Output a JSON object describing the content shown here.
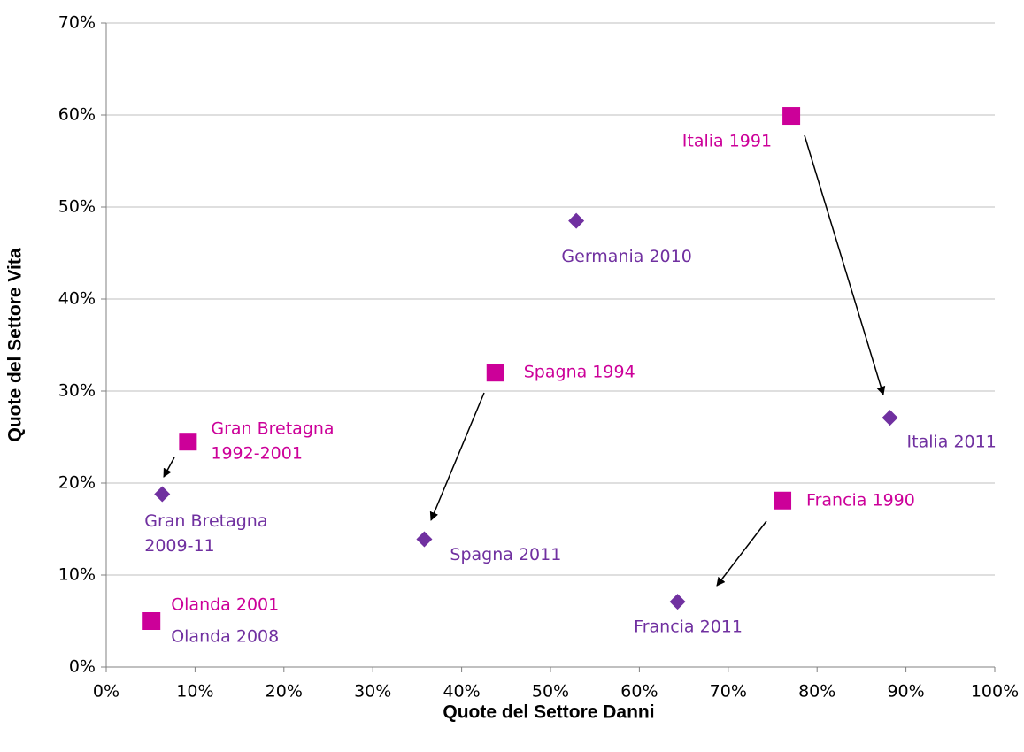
{
  "chart_data": {
    "type": "scatter",
    "xlabel": "Quote del Settore Danni",
    "ylabel": "Quote del Settore Vita",
    "xlim": [
      0,
      100
    ],
    "ylim": [
      0,
      70
    ],
    "xticks": [
      {
        "value": 0,
        "label": "0%"
      },
      {
        "value": 10,
        "label": "10%"
      },
      {
        "value": 20,
        "label": "20%"
      },
      {
        "value": 30,
        "label": "30%"
      },
      {
        "value": 40,
        "label": "40%"
      },
      {
        "value": 50,
        "label": "50%"
      },
      {
        "value": 60,
        "label": "60%"
      },
      {
        "value": 70,
        "label": "70%"
      },
      {
        "value": 80,
        "label": "80%"
      },
      {
        "value": 90,
        "label": "90%"
      },
      {
        "value": 100,
        "label": "100%"
      }
    ],
    "yticks": [
      {
        "value": 0,
        "label": "0%"
      },
      {
        "value": 10,
        "label": "10%"
      },
      {
        "value": 20,
        "label": "20%"
      },
      {
        "value": 30,
        "label": "30%"
      },
      {
        "value": 40,
        "label": "40%"
      },
      {
        "value": 50,
        "label": "50%"
      },
      {
        "value": 60,
        "label": "60%"
      },
      {
        "value": 70,
        "label": "70%"
      }
    ],
    "grid": true,
    "series": [
      {
        "color": "#7030a0",
        "marker": "diamond",
        "x": [
          52.9,
          88.2,
          6.3,
          35.8,
          64.3,
          5.1
        ],
        "values": [
          48.5,
          27.1,
          18.8,
          13.9,
          7.1,
          5.0
        ],
        "labels": [
          "Germania 2010",
          "Italia 2011",
          [
            "Gran Bretagna",
            "2009-11"
          ],
          "Spagna 2011",
          "Francia 2011",
          "Olanda 2008"
        ]
      },
      {
        "color": "#cc0099",
        "marker": "square",
        "x": [
          77.1,
          43.8,
          9.2,
          76.1,
          5.1
        ],
        "values": [
          59.9,
          32.0,
          24.5,
          18.1,
          5.0
        ],
        "labels": [
          "Italia 1991",
          "Spagna 1994",
          [
            "Gran Bretagna",
            "1992-2001"
          ],
          "Francia 1990",
          "Olanda 2001"
        ]
      }
    ]
  }
}
